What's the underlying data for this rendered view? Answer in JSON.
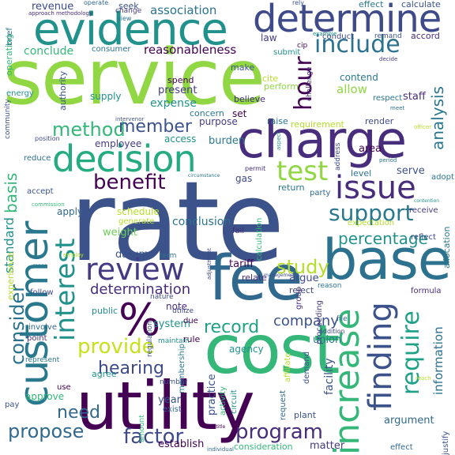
{
  "words": [
    {
      "text": "rate",
      "color": "#3b528b"
    },
    {
      "text": "service",
      "color": "#90d743"
    },
    {
      "text": "cost",
      "color": "#35b779"
    },
    {
      "text": "utility",
      "color": "#440154"
    },
    {
      "text": "charge",
      "color": "#472d7b"
    },
    {
      "text": "evidence",
      "color": "#21918c"
    },
    {
      "text": "base",
      "color": "#2c728e"
    },
    {
      "text": "fee",
      "color": "#31688e"
    },
    {
      "text": "customer",
      "color": "#2a788e"
    },
    {
      "text": "determine",
      "color": "#3e4a89"
    },
    {
      "text": "decision",
      "color": "#25ab82"
    },
    {
      "text": "%",
      "color": "#440154"
    },
    {
      "text": "increase",
      "color": "#35b779"
    },
    {
      "text": "finding",
      "color": "#3b528b"
    },
    {
      "text": "issue",
      "color": "#472d7b"
    },
    {
      "text": "support",
      "color": "#2a788e"
    },
    {
      "text": "review",
      "color": "#443a83"
    },
    {
      "text": "interest",
      "color": "#21918c"
    },
    {
      "text": "require",
      "color": "#1fa188"
    },
    {
      "text": "include",
      "color": "#2c728e"
    },
    {
      "text": "test",
      "color": "#90d743"
    },
    {
      "text": "benefit",
      "color": "#440154"
    },
    {
      "text": "method",
      "color": "#35b779"
    },
    {
      "text": "member",
      "color": "#3b528b"
    },
    {
      "text": "factor",
      "color": "#3e4a89"
    },
    {
      "text": "program",
      "color": "#472d7b"
    },
    {
      "text": "provide",
      "color": "#c8e020"
    },
    {
      "text": "propose",
      "color": "#31688e"
    },
    {
      "text": "consider",
      "color": "#2c728e"
    },
    {
      "text": "hour",
      "color": "#440154"
    },
    {
      "text": "study",
      "color": "#b5de2b"
    },
    {
      "text": "percentage",
      "color": "#21918c"
    },
    {
      "text": "hearing",
      "color": "#3e4a89"
    },
    {
      "text": "need",
      "color": "#31688e"
    },
    {
      "text": "record",
      "color": "#1fa188"
    },
    {
      "text": "analysis",
      "color": "#2a788e"
    },
    {
      "text": "basis",
      "color": "#35b779"
    },
    {
      "text": "standard",
      "color": "#21918c"
    },
    {
      "text": "determination",
      "color": "#472d7b"
    },
    {
      "text": "company",
      "color": "#3b528b"
    },
    {
      "text": "association",
      "color": "#2c728e"
    },
    {
      "text": "reasonableness",
      "color": "#440154"
    },
    {
      "text": "conclude",
      "color": "#35b779"
    },
    {
      "text": "revenue",
      "color": "#3e4a89"
    },
    {
      "text": "expense",
      "color": "#21918c"
    },
    {
      "text": "present",
      "color": "#443a83"
    },
    {
      "text": "allow",
      "color": "#90d743"
    },
    {
      "text": "contend",
      "color": "#2a788e"
    },
    {
      "text": "datum",
      "color": "#3b528b"
    },
    {
      "text": "conclusion",
      "color": "#2c728e"
    },
    {
      "text": "schedule",
      "color": "#b5de2b"
    },
    {
      "text": "weight",
      "color": "#6ece58"
    },
    {
      "text": "apply",
      "color": "#31688e"
    },
    {
      "text": "tariff",
      "color": "#440154"
    },
    {
      "text": "note",
      "color": "#472d7b"
    },
    {
      "text": "argue",
      "color": "#3e4a89"
    },
    {
      "text": "system",
      "color": "#21918c"
    },
    {
      "text": "union",
      "color": "#2a788e"
    },
    {
      "text": "year",
      "color": "#3b528b"
    },
    {
      "text": "establish",
      "color": "#440154"
    },
    {
      "text": "consideration",
      "color": "#35b779"
    },
    {
      "text": "matter",
      "color": "#443a83"
    },
    {
      "text": "information",
      "color": "#2c728e"
    },
    {
      "text": "facility",
      "color": "#3b528b"
    },
    {
      "text": "argument",
      "color": "#31688e"
    },
    {
      "text": "requirement",
      "color": "#b5de2b"
    },
    {
      "text": "staff",
      "color": "#472d7b"
    },
    {
      "text": "burden",
      "color": "#2a788e"
    },
    {
      "text": "employee",
      "color": "#443a83"
    },
    {
      "text": "access",
      "color": "#21918c"
    },
    {
      "text": "gas",
      "color": "#3e4a89"
    },
    {
      "text": "area",
      "color": "#440154"
    },
    {
      "text": "serve",
      "color": "#3b528b"
    },
    {
      "text": "level",
      "color": "#2c728e"
    },
    {
      "text": "return",
      "color": "#2a788e"
    },
    {
      "text": "party",
      "color": "#31688e"
    },
    {
      "text": "relate",
      "color": "#472d7b"
    },
    {
      "text": "reject",
      "color": "#3e4a89"
    },
    {
      "text": "agency",
      "color": "#21918c"
    },
    {
      "text": "practice",
      "color": "#3b528b"
    },
    {
      "text": "approve",
      "color": "#35b779"
    },
    {
      "text": "experience",
      "color": "#b5de2b"
    },
    {
      "text": "set",
      "color": "#440154"
    },
    {
      "text": "purpose",
      "color": "#443a83"
    },
    {
      "text": "raise",
      "color": "#2c728e"
    },
    {
      "text": "render",
      "color": "#3e4a89"
    },
    {
      "text": "supply",
      "color": "#21918c"
    },
    {
      "text": "believe",
      "color": "#472d7b"
    },
    {
      "text": "concern",
      "color": "#2a788e"
    },
    {
      "text": "authority",
      "color": "#3b528b"
    },
    {
      "text": "operating",
      "color": "#35b779"
    },
    {
      "text": "respect",
      "color": "#2c728e"
    },
    {
      "text": "plant",
      "color": "#3b528b"
    },
    {
      "text": "request",
      "color": "#31688e"
    },
    {
      "text": "formula",
      "color": "#472d7b"
    },
    {
      "text": "allocation",
      "color": "#2a788e"
    },
    {
      "text": "receive",
      "color": "#443a83"
    },
    {
      "text": "reflect",
      "color": "#3e4a89"
    },
    {
      "text": "rule",
      "color": "#440154"
    },
    {
      "text": "public",
      "color": "#21918c"
    },
    {
      "text": "accept",
      "color": "#3b528b"
    },
    {
      "text": "reduce",
      "color": "#2c728e"
    },
    {
      "text": "follow",
      "color": "#3e4a89"
    },
    {
      "text": "involve",
      "color": "#31688e"
    },
    {
      "text": "point",
      "color": "#472d7b"
    },
    {
      "text": "adopt",
      "color": "#2a788e"
    },
    {
      "text": "spend",
      "color": "#440154"
    },
    {
      "text": "make",
      "color": "#3b528b"
    },
    {
      "text": "cite",
      "color": "#b5de2b"
    },
    {
      "text": "perform",
      "color": "#90d743"
    },
    {
      "text": "law",
      "color": "#443a83"
    },
    {
      "text": "submit",
      "color": "#21918c"
    },
    {
      "text": "seek",
      "color": "#3b528b"
    },
    {
      "text": "consumer",
      "color": "#2c728e"
    },
    {
      "text": "conduct",
      "color": "#3e4a89"
    },
    {
      "text": "accord",
      "color": "#472d7b"
    },
    {
      "text": "effect",
      "color": "#2a788e"
    },
    {
      "text": "calculate",
      "color": "#3b528b"
    },
    {
      "text": "change",
      "color": "#443a83"
    },
    {
      "text": "operate",
      "color": "#31688e"
    },
    {
      "text": "brief",
      "color": "#2c728e"
    },
    {
      "text": "energy",
      "color": "#21918c"
    },
    {
      "text": "community",
      "color": "#3b528b"
    },
    {
      "text": "calculation",
      "color": "#35b779"
    },
    {
      "text": "fail",
      "color": "#472d7b"
    },
    {
      "text": "expectation",
      "color": "#b5de2b"
    },
    {
      "text": "nature",
      "color": "#3e4a89"
    },
    {
      "text": "maintain",
      "color": "#21918c"
    },
    {
      "text": "number",
      "color": "#3b528b"
    },
    {
      "text": "exist",
      "color": "#31688e"
    },
    {
      "text": "term",
      "color": "#2c728e"
    },
    {
      "text": "due",
      "color": "#440154"
    },
    {
      "text": "utilize",
      "color": "#3e4a89"
    },
    {
      "text": "activity",
      "color": "#35b779"
    },
    {
      "text": "circuit",
      "color": "#21918c"
    },
    {
      "text": "membership",
      "color": "#2a788e"
    },
    {
      "text": "affiliate",
      "color": "#b5de2b"
    },
    {
      "text": "demand",
      "color": "#3b528b"
    },
    {
      "text": "proceeding",
      "color": "#443a83"
    },
    {
      "text": "reason",
      "color": "#2c728e"
    },
    {
      "text": "group",
      "color": "#472d7b"
    },
    {
      "text": "addition",
      "color": "#3e4a89"
    },
    {
      "text": "file",
      "color": "#31688e"
    },
    {
      "text": "pay",
      "color": "#3b528b"
    },
    {
      "text": "represent",
      "color": "#2a788e"
    },
    {
      "text": "agree",
      "color": "#21918c"
    },
    {
      "text": "use",
      "color": "#440154"
    },
    {
      "text": "amount",
      "color": "#35b779"
    },
    {
      "text": "justify",
      "color": "#3b528b"
    },
    {
      "text": "effect",
      "color": "#31688e"
    },
    {
      "text": "position",
      "color": "#3e4a89"
    },
    {
      "text": "approach methodology",
      "color": "#472d7b"
    },
    {
      "text": "view",
      "color": "#2c728e"
    },
    {
      "text": "example",
      "color": "#21918c"
    },
    {
      "text": "remand",
      "color": "#3b528b"
    },
    {
      "text": "decide",
      "color": "#443a83"
    },
    {
      "text": "period",
      "color": "#2a788e"
    },
    {
      "text": "officer",
      "color": "#b5de2b"
    },
    {
      "text": "intervenor",
      "color": "#3b528b"
    },
    {
      "text": "permit",
      "color": "#472d7b"
    },
    {
      "text": "aspect",
      "color": "#21918c"
    },
    {
      "text": "management",
      "color": "#3e4a89"
    },
    {
      "text": "commission",
      "color": "#35b779"
    },
    {
      "text": "range",
      "color": "#2c728e"
    },
    {
      "text": "regulation",
      "color": "#3b528b"
    },
    {
      "text": "entitle",
      "color": "#440154"
    },
    {
      "text": "individual",
      "color": "#31688e"
    },
    {
      "text": "circumstance",
      "color": "#2a788e"
    },
    {
      "text": "adjustment",
      "color": "#3e4a89"
    },
    {
      "text": "generate",
      "color": "#b5de2b"
    },
    {
      "text": "contention",
      "color": "#21918c"
    },
    {
      "text": "rely",
      "color": "#3b528b"
    },
    {
      "text": "challenge",
      "color": "#472d7b"
    },
    {
      "text": "cip",
      "color": "#440154"
    },
    {
      "text": "employ",
      "color": "#b5de2b"
    },
    {
      "text": "meet",
      "color": "#2c728e"
    },
    {
      "text": "address",
      "color": "#3e4a89"
    },
    {
      "text": "reach",
      "color": "#b5de2b"
    }
  ]
}
